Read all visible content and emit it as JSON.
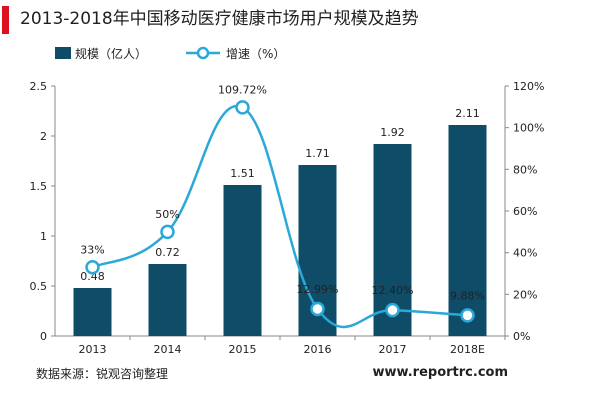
{
  "title": "2013-2018年中国移动医疗健康市场用户规模及趋势",
  "source": "数据来源：锐观咨询整理",
  "website": "www.reportrc.com",
  "chart_data": {
    "type": "bar",
    "categories": [
      "2013",
      "2014",
      "2015",
      "2016",
      "2017",
      "2018E"
    ],
    "series": [
      {
        "name": "规模（亿人）",
        "type": "bar",
        "axis": "left",
        "color": "#0f4c68",
        "values": [
          0.48,
          0.72,
          1.51,
          1.71,
          1.92,
          2.11
        ],
        "labels": [
          "0.48",
          "0.72",
          "1.51",
          "1.71",
          "1.92",
          "2.11"
        ]
      },
      {
        "name": "增速（%）",
        "type": "line",
        "axis": "right",
        "color": "#2aa8d8",
        "values": [
          33,
          50,
          109.72,
          12.99,
          12.4,
          9.88
        ],
        "labels": [
          "33%",
          "50%",
          "109.72%",
          "12.99%",
          "12.40%",
          "9.88%"
        ]
      }
    ],
    "ylim_left": [
      0,
      2.5
    ],
    "yticks_left": [
      "0",
      "0.5",
      "1",
      "1.5",
      "2",
      "2.5"
    ],
    "ylim_right": [
      0,
      120
    ],
    "yticks_right": [
      "0%",
      "20%",
      "40%",
      "60%",
      "80%",
      "100%",
      "120%"
    ],
    "legend": "top-left",
    "grid": false
  }
}
